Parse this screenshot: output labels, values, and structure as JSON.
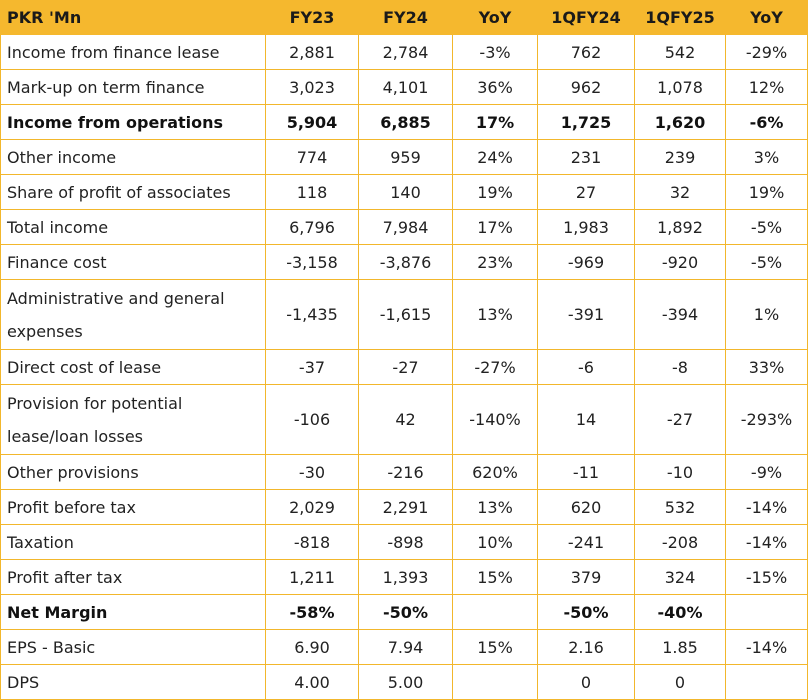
{
  "table": {
    "header": [
      "PKR 'Mn",
      "FY23",
      "FY24",
      "YoY",
      "1QFY24",
      "1QFY25",
      "YoY"
    ],
    "rows": [
      {
        "label": "Income from finance lease",
        "values": [
          "2,881",
          "2,784",
          "-3%",
          "762",
          "542",
          "-29%"
        ]
      },
      {
        "label": "Mark-up on term finance",
        "values": [
          "3,023",
          "4,101",
          "36%",
          "962",
          "1,078",
          "12%"
        ]
      },
      {
        "label": "Income from operations",
        "values": [
          "5,904",
          "6,885",
          "17%",
          "1,725",
          "1,620",
          "-6%"
        ]
      },
      {
        "label": "Other income",
        "values": [
          "774",
          "959",
          "24%",
          "231",
          "239",
          "3%"
        ]
      },
      {
        "label": "Share of profit of associates",
        "values": [
          "118",
          "140",
          "19%",
          "27",
          "32",
          "19%"
        ]
      },
      {
        "label": "Total income",
        "values": [
          "6,796",
          "7,984",
          "17%",
          "1,983",
          "1,892",
          "-5%"
        ]
      },
      {
        "label": "Finance cost",
        "values": [
          "-3,158",
          "-3,876",
          "23%",
          "-969",
          "-920",
          "-5%"
        ]
      },
      {
        "label": "Administrative and general expenses",
        "values": [
          "-1,435",
          "-1,615",
          "13%",
          "-391",
          "-394",
          "1%"
        ]
      },
      {
        "label": "Direct cost of lease",
        "values": [
          "-37",
          "-27",
          "-27%",
          "-6",
          "-8",
          "33%"
        ]
      },
      {
        "label": "Provision for potential lease/loan losses",
        "values": [
          "-106",
          "42",
          "-140%",
          "14",
          "-27",
          "-293%"
        ]
      },
      {
        "label": "Other provisions",
        "values": [
          "-30",
          "-216",
          "620%",
          "-11",
          "-10",
          "-9%"
        ]
      },
      {
        "label": "Profit before tax",
        "values": [
          "2,029",
          "2,291",
          "13%",
          "620",
          "532",
          "-14%"
        ]
      },
      {
        "label": "Taxation",
        "values": [
          "-818",
          "-898",
          "10%",
          "-241",
          "-208",
          "-14%"
        ]
      },
      {
        "label": "Profit after tax",
        "values": [
          "1,211",
          "1,393",
          "15%",
          "379",
          "324",
          "-15%"
        ]
      },
      {
        "label": "Net Margin",
        "values": [
          "-58%",
          "-50%",
          "",
          "-50%",
          "-40%",
          ""
        ]
      },
      {
        "label": "EPS - Basic",
        "values": [
          "6.90",
          "7.94",
          "15%",
          "2.16",
          "1.85",
          "-14%"
        ]
      },
      {
        "label": "DPS",
        "values": [
          "4.00",
          "5.00",
          "",
          "0",
          "0",
          ""
        ]
      }
    ]
  },
  "colors": {
    "header_bg": "#f5b82e",
    "border": "#f2b72c",
    "text": "#222222"
  }
}
